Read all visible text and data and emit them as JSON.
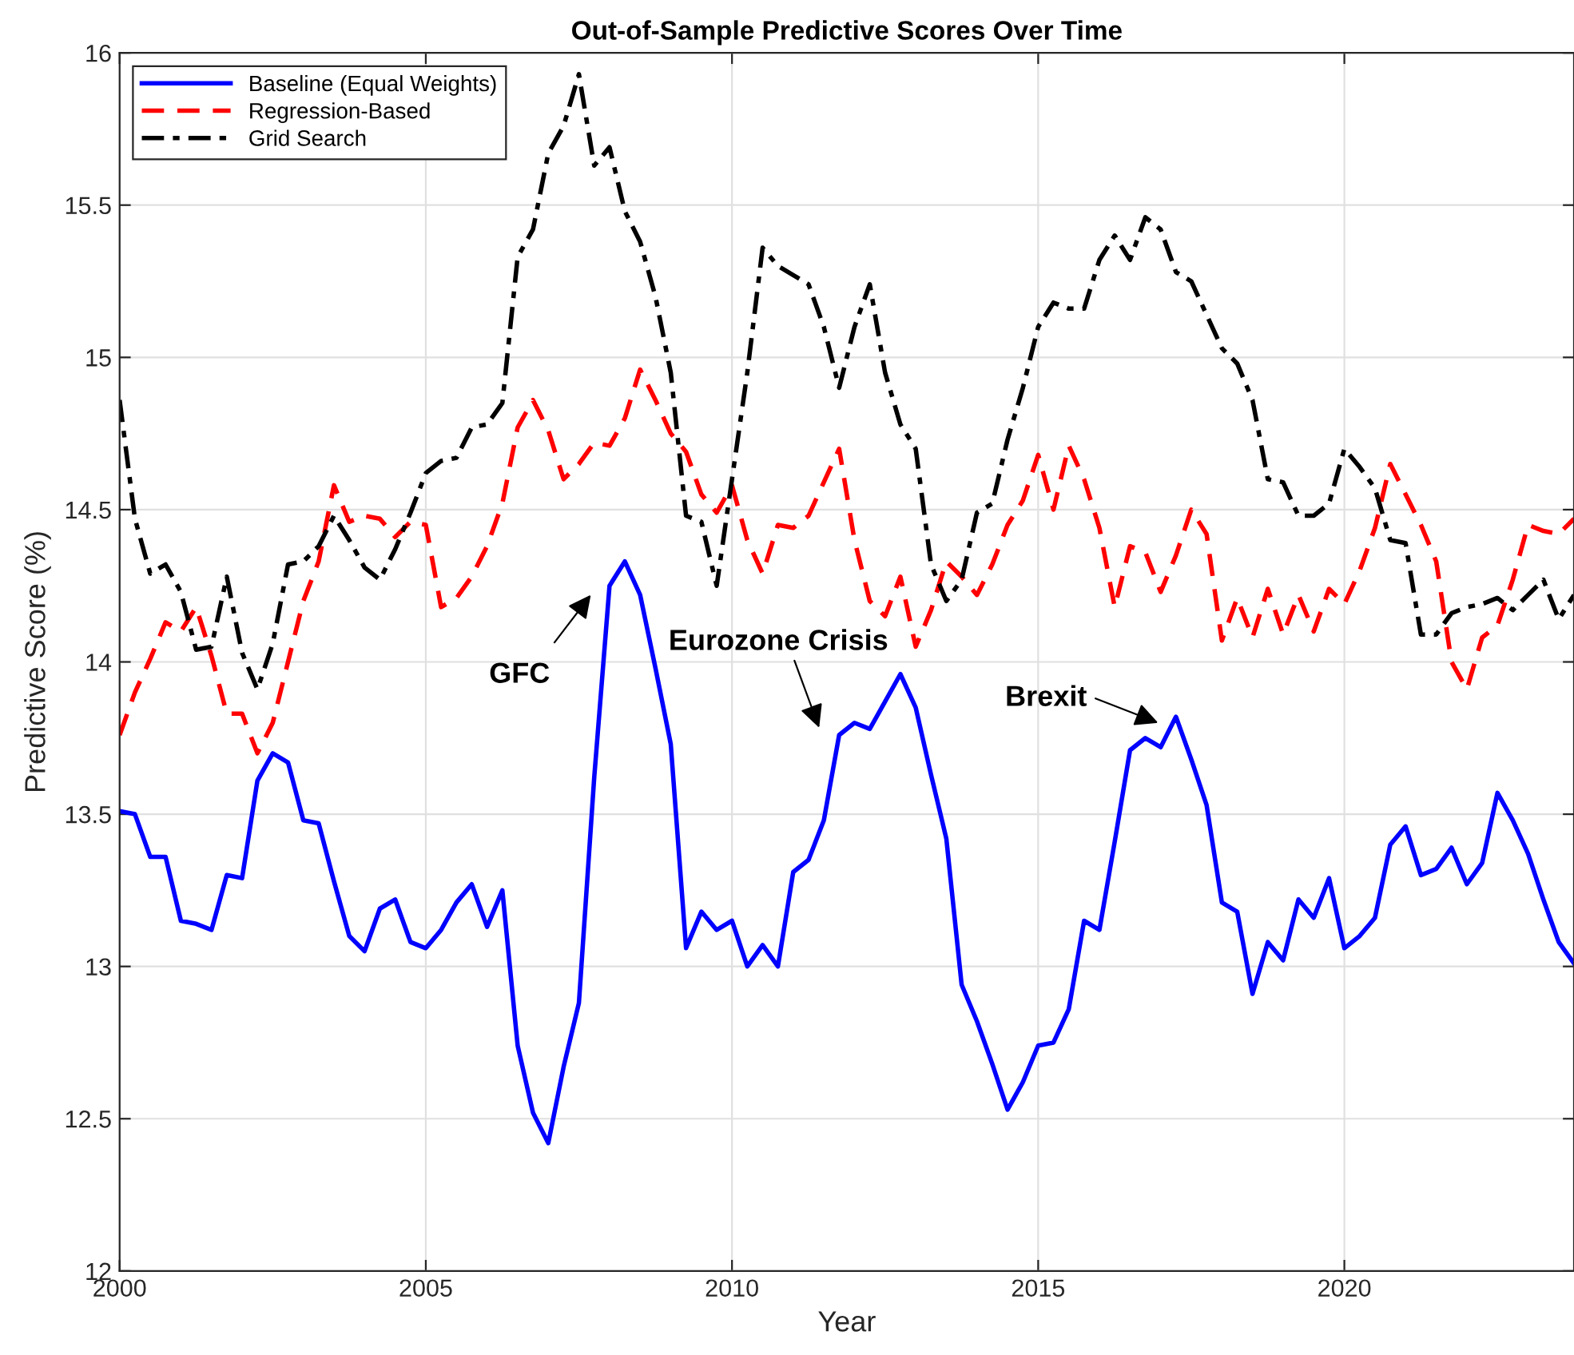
{
  "chart_data": {
    "type": "line",
    "title": "Out-of-Sample Predictive Scores Over Time",
    "xlabel": "Year",
    "ylabel": "Predictive Score (%)",
    "x": [
      2000,
      2000.25,
      2000.5,
      2000.75,
      2001,
      2001.25,
      2001.5,
      2001.75,
      2002,
      2002.25,
      2002.5,
      2002.75,
      2003,
      2003.25,
      2003.5,
      2003.75,
      2004,
      2004.25,
      2004.5,
      2004.75,
      2005,
      2005.25,
      2005.5,
      2005.75,
      2006,
      2006.25,
      2006.5,
      2006.75,
      2007,
      2007.25,
      2007.5,
      2007.75,
      2008,
      2008.25,
      2008.5,
      2008.75,
      2009,
      2009.25,
      2009.5,
      2009.75,
      2010,
      2010.25,
      2010.5,
      2010.75,
      2011,
      2011.25,
      2011.5,
      2011.75,
      2012,
      2012.25,
      2012.5,
      2012.75,
      2013,
      2013.25,
      2013.5,
      2013.75,
      2014,
      2014.25,
      2014.5,
      2014.75,
      2015,
      2015.25,
      2015.5,
      2015.75,
      2016,
      2016.25,
      2016.5,
      2016.75,
      2017,
      2017.25,
      2017.5,
      2017.75,
      2018,
      2018.25,
      2018.5,
      2018.75,
      2019,
      2019.25,
      2019.5,
      2019.75,
      2020,
      2020.25,
      2020.5,
      2020.75,
      2021,
      2021.25,
      2021.5,
      2021.75,
      2022,
      2022.25,
      2022.5,
      2022.75,
      2023,
      2023.25,
      2023.5,
      2023.75
    ],
    "series": [
      {
        "name": "Baseline (Equal Weights)",
        "color": "#0000ff",
        "line_style": "solid",
        "values": [
          13.51,
          13.5,
          13.36,
          13.36,
          13.15,
          13.14,
          13.12,
          13.3,
          13.29,
          13.61,
          13.7,
          13.67,
          13.48,
          13.47,
          13.28,
          13.1,
          13.05,
          13.19,
          13.22,
          13.08,
          13.06,
          13.12,
          13.21,
          13.27,
          13.13,
          13.25,
          12.74,
          12.52,
          12.42,
          12.67,
          12.88,
          13.62,
          14.25,
          14.33,
          14.22,
          13.98,
          13.73,
          13.06,
          13.18,
          13.12,
          13.15,
          13.0,
          13.07,
          13.0,
          13.31,
          13.35,
          13.48,
          13.76,
          13.8,
          13.78,
          13.87,
          13.96,
          13.85,
          13.63,
          13.42,
          12.94,
          12.82,
          12.68,
          12.53,
          12.62,
          12.74,
          12.75,
          12.86,
          13.15,
          13.12,
          13.41,
          13.71,
          13.75,
          13.72,
          13.82,
          13.68,
          13.53,
          13.21,
          13.18,
          12.91,
          13.08,
          13.02,
          13.22,
          13.16,
          13.29,
          13.06,
          13.1,
          13.16,
          13.4,
          13.46,
          13.3,
          13.32,
          13.39,
          13.27,
          13.34,
          13.57,
          13.48,
          13.37,
          13.22,
          13.08,
          13.01
        ]
      },
      {
        "name": "Regression-Based",
        "color": "#ff0000",
        "line_style": "dashed",
        "values": [
          13.76,
          13.9,
          14.01,
          14.13,
          14.1,
          14.18,
          14.02,
          13.83,
          13.83,
          13.7,
          13.8,
          14.0,
          14.2,
          14.33,
          14.58,
          14.46,
          14.48,
          14.47,
          14.41,
          14.46,
          14.45,
          14.18,
          14.21,
          14.28,
          14.38,
          14.52,
          14.77,
          14.86,
          14.76,
          14.6,
          14.65,
          14.72,
          14.71,
          14.8,
          14.96,
          14.86,
          14.75,
          14.69,
          14.55,
          14.49,
          14.58,
          14.4,
          14.29,
          14.45,
          14.44,
          14.48,
          14.59,
          14.7,
          14.4,
          14.2,
          14.15,
          14.28,
          14.05,
          14.17,
          14.33,
          14.28,
          14.22,
          14.32,
          14.45,
          14.53,
          14.68,
          14.5,
          14.71,
          14.6,
          14.44,
          14.18,
          14.38,
          14.36,
          14.23,
          14.35,
          14.5,
          14.42,
          14.07,
          14.21,
          14.08,
          14.24,
          14.09,
          14.22,
          14.1,
          14.24,
          14.19,
          14.3,
          14.44,
          14.65,
          14.55,
          14.45,
          14.33,
          14.0,
          13.91,
          14.08,
          14.12,
          14.27,
          14.45,
          14.43,
          14.42,
          14.47
        ]
      },
      {
        "name": "Grid Search",
        "color": "#000000",
        "line_style": "dashdot",
        "values": [
          14.86,
          14.47,
          14.29,
          14.32,
          14.23,
          14.04,
          14.05,
          14.28,
          14.03,
          13.91,
          14.06,
          14.32,
          14.33,
          14.38,
          14.48,
          14.4,
          14.31,
          14.27,
          14.37,
          14.49,
          14.62,
          14.66,
          14.67,
          14.77,
          14.78,
          14.85,
          15.33,
          15.42,
          15.67,
          15.76,
          15.93,
          15.63,
          15.69,
          15.48,
          15.38,
          15.2,
          14.95,
          14.48,
          14.46,
          14.25,
          14.6,
          14.95,
          15.36,
          15.3,
          15.27,
          15.24,
          15.1,
          14.9,
          15.1,
          15.24,
          14.95,
          14.78,
          14.7,
          14.32,
          14.2,
          14.27,
          14.49,
          14.52,
          14.73,
          14.9,
          15.1,
          15.18,
          15.16,
          15.16,
          15.32,
          15.4,
          15.32,
          15.46,
          15.42,
          15.28,
          15.25,
          15.14,
          15.03,
          14.98,
          14.86,
          14.6,
          14.59,
          14.48,
          14.48,
          14.52,
          14.7,
          14.64,
          14.57,
          14.4,
          14.39,
          14.09,
          14.09,
          14.16,
          14.18,
          14.19,
          14.21,
          14.17,
          14.22,
          14.27,
          14.14,
          14.22
        ]
      }
    ],
    "xlim": [
      2000,
      2023.75
    ],
    "xticks": [
      2000,
      2005,
      2010,
      2015,
      2020
    ],
    "ylim": [
      12,
      16
    ],
    "yticks": [
      12,
      12.5,
      13,
      13.5,
      14,
      14.5,
      15,
      15.5,
      16
    ],
    "annotations": [
      "GFC",
      "Eurozone Crisis",
      "Brexit"
    ],
    "grid": true,
    "legend": "top left",
    "marker": "none"
  }
}
